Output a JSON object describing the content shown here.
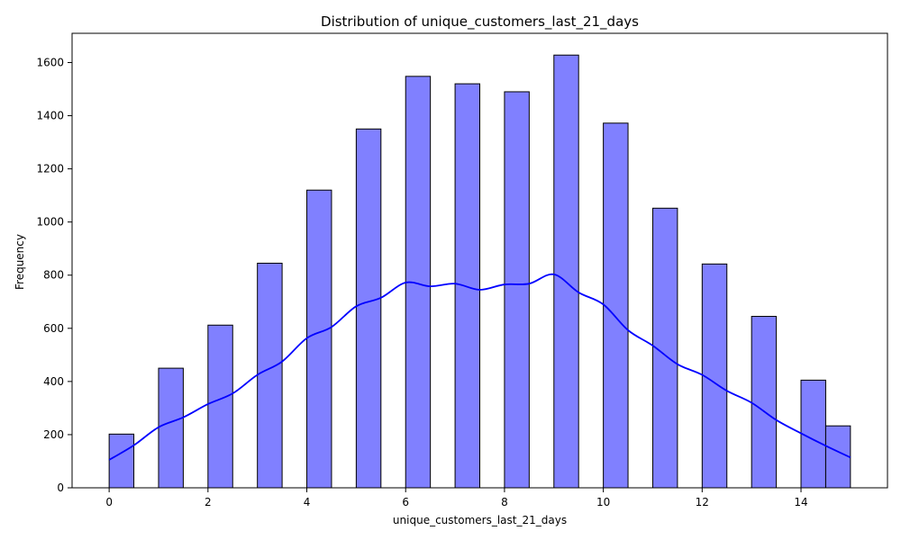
{
  "chart_data": {
    "type": "bar",
    "subtype": "histogram-with-kde",
    "title": "Distribution of unique_customers_last_21_days",
    "xlabel": "unique_customers_last_21_days",
    "ylabel": "Frequency",
    "xlim": [
      -0.75,
      15.75
    ],
    "ylim": [
      0,
      1710
    ],
    "xticks": [
      0,
      2,
      4,
      6,
      8,
      10,
      12,
      14
    ],
    "yticks": [
      0,
      200,
      400,
      600,
      800,
      1000,
      1200,
      1400,
      1600
    ],
    "grid": false,
    "bin_width": 0.5,
    "bins": [
      {
        "x0": 0.0,
        "x1": 0.5,
        "count": 202
      },
      {
        "x0": 1.0,
        "x1": 1.5,
        "count": 450
      },
      {
        "x0": 2.0,
        "x1": 2.5,
        "count": 612
      },
      {
        "x0": 3.0,
        "x1": 3.5,
        "count": 845
      },
      {
        "x0": 4.0,
        "x1": 4.5,
        "count": 1120
      },
      {
        "x0": 5.0,
        "x1": 5.5,
        "count": 1350
      },
      {
        "x0": 6.0,
        "x1": 6.5,
        "count": 1548
      },
      {
        "x0": 7.0,
        "x1": 7.5,
        "count": 1520
      },
      {
        "x0": 8.0,
        "x1": 8.5,
        "count": 1490
      },
      {
        "x0": 9.0,
        "x1": 9.5,
        "count": 1628
      },
      {
        "x0": 10.0,
        "x1": 10.5,
        "count": 1372
      },
      {
        "x0": 11.0,
        "x1": 11.5,
        "count": 1052
      },
      {
        "x0": 12.0,
        "x1": 12.5,
        "count": 842
      },
      {
        "x0": 13.0,
        "x1": 13.5,
        "count": 645
      },
      {
        "x0": 14.0,
        "x1": 14.5,
        "count": 405
      },
      {
        "x0": 14.5,
        "x1": 15.0,
        "count": 233
      }
    ],
    "kde": {
      "x": [
        0,
        0.5,
        1,
        1.5,
        2,
        2.5,
        3,
        3.5,
        4,
        4.5,
        5,
        5.5,
        6,
        6.5,
        7,
        7.5,
        8,
        8.5,
        9,
        9.5,
        10,
        10.5,
        11,
        11.5,
        12,
        12.5,
        13,
        13.5,
        14,
        14.5,
        15
      ],
      "y": [
        105,
        160,
        228,
        265,
        315,
        355,
        425,
        475,
        563,
        605,
        683,
        715,
        772,
        758,
        768,
        745,
        765,
        768,
        803,
        735,
        690,
        593,
        535,
        465,
        425,
        365,
        320,
        255,
        205,
        158,
        114
      ]
    },
    "colors": {
      "bar_fill": "#8080ff",
      "bar_edge": "#000000",
      "kde_line": "#0000ff"
    }
  }
}
